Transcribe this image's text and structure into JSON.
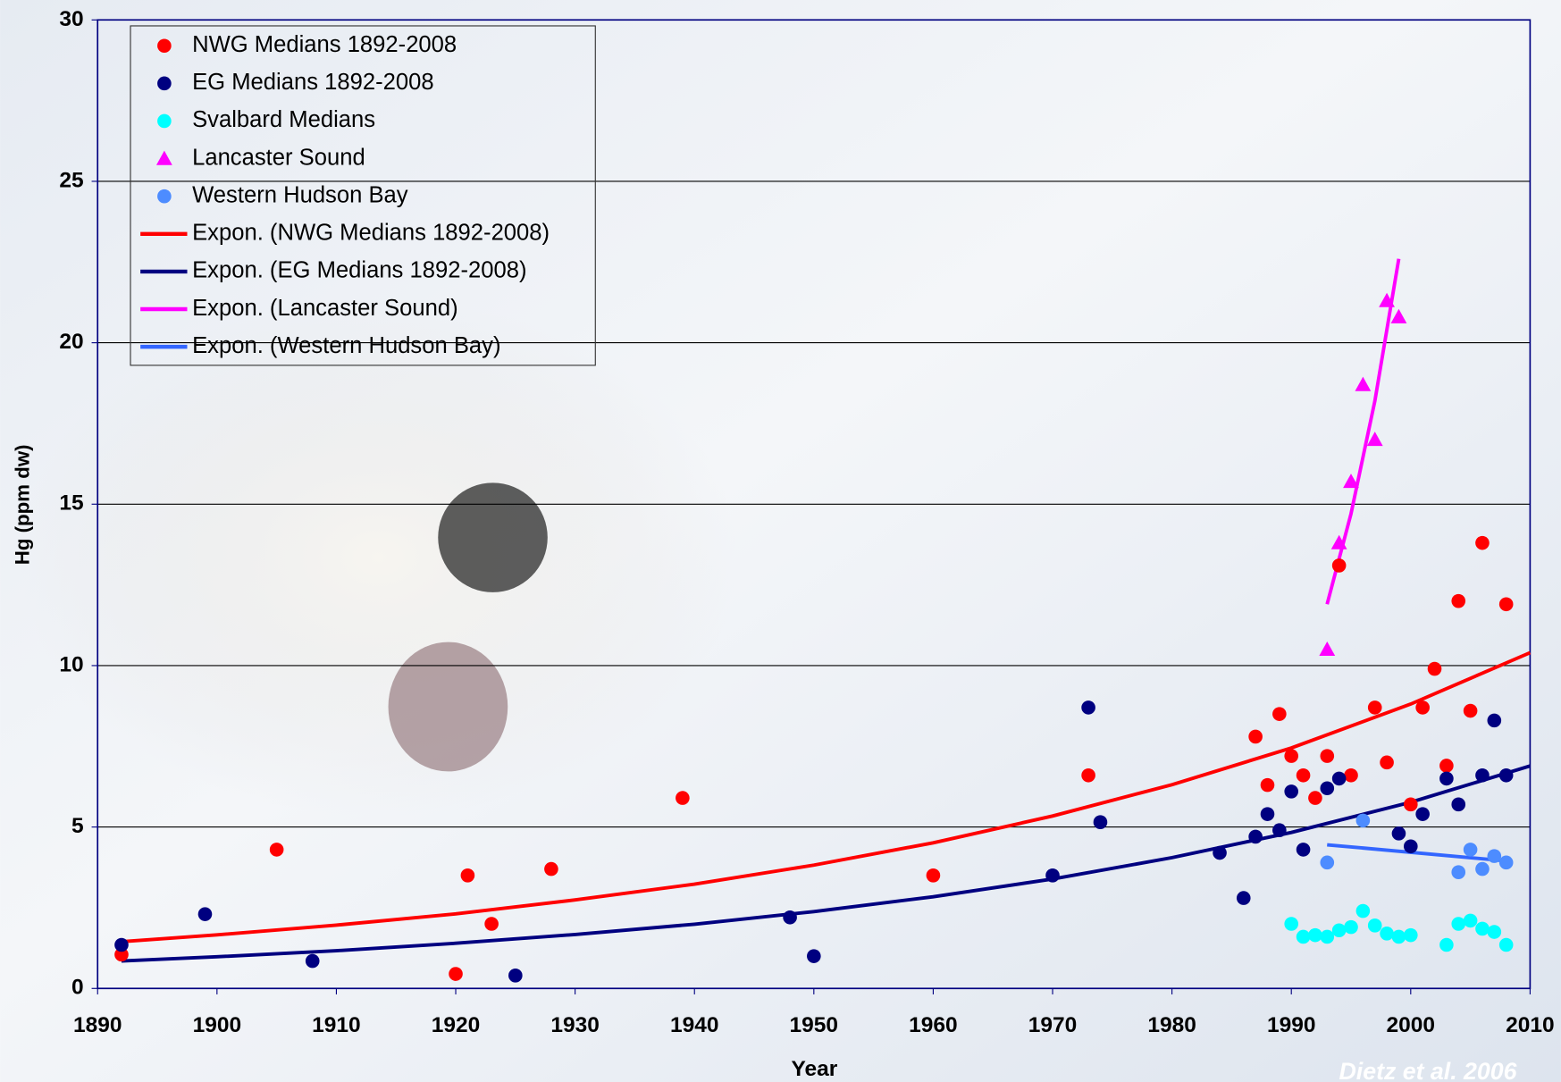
{
  "chart_data": {
    "type": "scatter",
    "xlabel": "Year",
    "ylabel": "Hg (ppm dw)",
    "annotation": "Dietz et al. 2006",
    "xlim": [
      1890,
      2010
    ],
    "xticks": [
      1890,
      1900,
      1910,
      1920,
      1930,
      1940,
      1950,
      1960,
      1970,
      1980,
      1990,
      2000,
      2010
    ],
    "ylim": [
      0,
      30
    ],
    "yticks": [
      0,
      5,
      10,
      15,
      20,
      25,
      30
    ],
    "grid": true,
    "legend": "upper left",
    "series": [
      {
        "name": "NWG Medians 1892-2008",
        "color": "#ff0000",
        "mode": "markers",
        "marker": "circle",
        "x": [
          1892,
          1905,
          1921,
          1923,
          1920,
          1928,
          1939,
          1960,
          1973,
          1987,
          1988,
          1989,
          1990,
          1991,
          1992,
          1993,
          1994,
          1995,
          1997,
          1998,
          2000,
          2001,
          2002,
          2003,
          2004,
          2005,
          2006,
          2008
        ],
        "values": [
          1.05,
          4.3,
          3.5,
          2.0,
          0.45,
          3.7,
          5.9,
          3.5,
          6.6,
          7.8,
          6.3,
          8.5,
          7.2,
          6.6,
          5.9,
          7.2,
          13.1,
          6.6,
          8.7,
          7.0,
          5.7,
          8.7,
          9.9,
          6.9,
          12.0,
          8.6,
          13.8,
          11.9
        ]
      },
      {
        "name": "EG Medians 1892-2008",
        "color": "#000080",
        "mode": "markers",
        "marker": "circle",
        "x": [
          1892,
          1899,
          1908,
          1925,
          1948,
          1950,
          1970,
          1973,
          1974,
          1984,
          1986,
          1987,
          1988,
          1989,
          1990,
          1991,
          1993,
          1994,
          1999,
          2000,
          2001,
          2003,
          2004,
          2006,
          2007,
          2008
        ],
        "values": [
          1.35,
          2.3,
          0.85,
          0.4,
          2.2,
          1.0,
          3.5,
          8.7,
          5.15,
          4.2,
          2.8,
          4.7,
          5.4,
          4.9,
          6.1,
          4.3,
          6.2,
          6.5,
          4.8,
          4.4,
          5.4,
          6.5,
          5.7,
          6.6,
          8.3,
          6.6
        ]
      },
      {
        "name": "Svalbard Medians",
        "color": "#00ffff",
        "mode": "markers",
        "marker": "circle",
        "x": [
          1990,
          1991,
          1992,
          1993,
          1994,
          1995,
          1996,
          1997,
          1998,
          1999,
          2000,
          2003,
          2004,
          2005,
          2006,
          2007,
          2008
        ],
        "values": [
          2.0,
          1.6,
          1.65,
          1.6,
          1.8,
          1.9,
          2.4,
          1.95,
          1.7,
          1.6,
          1.65,
          1.35,
          2.0,
          2.1,
          1.85,
          1.75,
          1.35
        ]
      },
      {
        "name": "Lancaster Sound",
        "color": "#ff00ff",
        "mode": "markers",
        "marker": "triangle",
        "x": [
          1993,
          1994,
          1995,
          1996,
          1997,
          1998,
          1999
        ],
        "values": [
          10.5,
          13.8,
          15.7,
          18.7,
          17.0,
          21.3,
          20.8
        ]
      },
      {
        "name": "Western Hudson Bay",
        "color": "#4d8cff",
        "mode": "markers",
        "marker": "circle",
        "x": [
          1993,
          1996,
          2004,
          2005,
          2006,
          2007,
          2008
        ],
        "values": [
          3.9,
          5.2,
          3.6,
          4.3,
          3.7,
          4.1,
          3.9
        ]
      },
      {
        "name": "Expon. (NWG Medians 1892-2008)",
        "color": "#ff0000",
        "mode": "line",
        "x": [
          1892,
          1900,
          1910,
          1920,
          1930,
          1940,
          1950,
          1960,
          1970,
          1980,
          1990,
          2000,
          2010
        ],
        "values": [
          1.45,
          1.66,
          1.96,
          2.31,
          2.74,
          3.23,
          3.82,
          4.51,
          5.34,
          6.31,
          7.45,
          8.81,
          10.4
        ]
      },
      {
        "name": "Expon. (EG Medians 1892-2008)",
        "color": "#000080",
        "mode": "line",
        "x": [
          1892,
          1900,
          1910,
          1920,
          1930,
          1940,
          1950,
          1960,
          1970,
          1980,
          1990,
          2000,
          2010
        ],
        "values": [
          0.85,
          0.98,
          1.17,
          1.4,
          1.67,
          1.99,
          2.38,
          2.84,
          3.39,
          4.05,
          4.83,
          5.77,
          6.89
        ]
      },
      {
        "name": "Expon. (Lancaster Sound)",
        "color": "#ff00ff",
        "mode": "line",
        "x": [
          1993,
          1995,
          1997,
          1999
        ],
        "values": [
          11.9,
          14.7,
          18.2,
          22.6
        ]
      },
      {
        "name": "Expon. (Western Hudson Bay)",
        "color": "#3366ff",
        "mode": "line",
        "x": [
          1993,
          2008
        ],
        "values": [
          4.45,
          3.95
        ]
      }
    ]
  }
}
